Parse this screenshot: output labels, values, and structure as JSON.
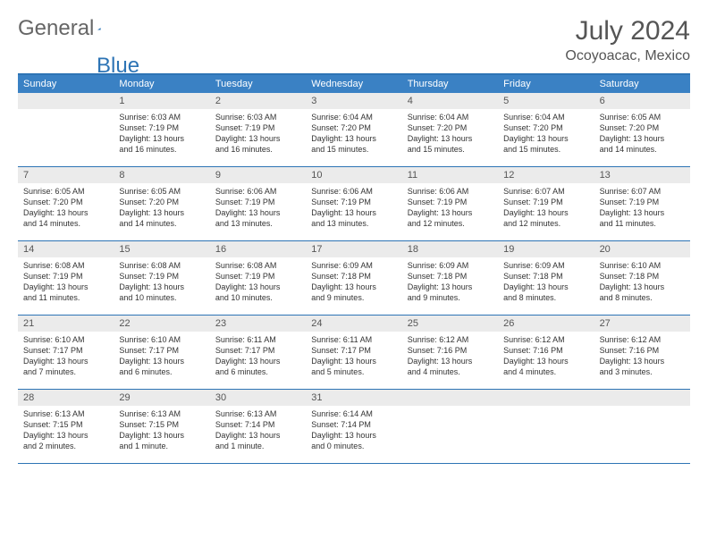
{
  "brand": {
    "part1": "General",
    "part2": "Blue"
  },
  "title": "July 2024",
  "subtitle": "Ocoyoacac, Mexico",
  "colors": {
    "accent": "#2d74b5",
    "header_bg": "#3a81c4",
    "daynum_bg": "#ebebeb",
    "text": "#333333",
    "muted": "#555555"
  },
  "weekdays": [
    "Sunday",
    "Monday",
    "Tuesday",
    "Wednesday",
    "Thursday",
    "Friday",
    "Saturday"
  ],
  "weeks": [
    [
      null,
      {
        "n": "1",
        "sr": "Sunrise: 6:03 AM",
        "ss": "Sunset: 7:19 PM",
        "dl1": "Daylight: 13 hours",
        "dl2": "and 16 minutes."
      },
      {
        "n": "2",
        "sr": "Sunrise: 6:03 AM",
        "ss": "Sunset: 7:19 PM",
        "dl1": "Daylight: 13 hours",
        "dl2": "and 16 minutes."
      },
      {
        "n": "3",
        "sr": "Sunrise: 6:04 AM",
        "ss": "Sunset: 7:20 PM",
        "dl1": "Daylight: 13 hours",
        "dl2": "and 15 minutes."
      },
      {
        "n": "4",
        "sr": "Sunrise: 6:04 AM",
        "ss": "Sunset: 7:20 PM",
        "dl1": "Daylight: 13 hours",
        "dl2": "and 15 minutes."
      },
      {
        "n": "5",
        "sr": "Sunrise: 6:04 AM",
        "ss": "Sunset: 7:20 PM",
        "dl1": "Daylight: 13 hours",
        "dl2": "and 15 minutes."
      },
      {
        "n": "6",
        "sr": "Sunrise: 6:05 AM",
        "ss": "Sunset: 7:20 PM",
        "dl1": "Daylight: 13 hours",
        "dl2": "and 14 minutes."
      }
    ],
    [
      {
        "n": "7",
        "sr": "Sunrise: 6:05 AM",
        "ss": "Sunset: 7:20 PM",
        "dl1": "Daylight: 13 hours",
        "dl2": "and 14 minutes."
      },
      {
        "n": "8",
        "sr": "Sunrise: 6:05 AM",
        "ss": "Sunset: 7:20 PM",
        "dl1": "Daylight: 13 hours",
        "dl2": "and 14 minutes."
      },
      {
        "n": "9",
        "sr": "Sunrise: 6:06 AM",
        "ss": "Sunset: 7:19 PM",
        "dl1": "Daylight: 13 hours",
        "dl2": "and 13 minutes."
      },
      {
        "n": "10",
        "sr": "Sunrise: 6:06 AM",
        "ss": "Sunset: 7:19 PM",
        "dl1": "Daylight: 13 hours",
        "dl2": "and 13 minutes."
      },
      {
        "n": "11",
        "sr": "Sunrise: 6:06 AM",
        "ss": "Sunset: 7:19 PM",
        "dl1": "Daylight: 13 hours",
        "dl2": "and 12 minutes."
      },
      {
        "n": "12",
        "sr": "Sunrise: 6:07 AM",
        "ss": "Sunset: 7:19 PM",
        "dl1": "Daylight: 13 hours",
        "dl2": "and 12 minutes."
      },
      {
        "n": "13",
        "sr": "Sunrise: 6:07 AM",
        "ss": "Sunset: 7:19 PM",
        "dl1": "Daylight: 13 hours",
        "dl2": "and 11 minutes."
      }
    ],
    [
      {
        "n": "14",
        "sr": "Sunrise: 6:08 AM",
        "ss": "Sunset: 7:19 PM",
        "dl1": "Daylight: 13 hours",
        "dl2": "and 11 minutes."
      },
      {
        "n": "15",
        "sr": "Sunrise: 6:08 AM",
        "ss": "Sunset: 7:19 PM",
        "dl1": "Daylight: 13 hours",
        "dl2": "and 10 minutes."
      },
      {
        "n": "16",
        "sr": "Sunrise: 6:08 AM",
        "ss": "Sunset: 7:19 PM",
        "dl1": "Daylight: 13 hours",
        "dl2": "and 10 minutes."
      },
      {
        "n": "17",
        "sr": "Sunrise: 6:09 AM",
        "ss": "Sunset: 7:18 PM",
        "dl1": "Daylight: 13 hours",
        "dl2": "and 9 minutes."
      },
      {
        "n": "18",
        "sr": "Sunrise: 6:09 AM",
        "ss": "Sunset: 7:18 PM",
        "dl1": "Daylight: 13 hours",
        "dl2": "and 9 minutes."
      },
      {
        "n": "19",
        "sr": "Sunrise: 6:09 AM",
        "ss": "Sunset: 7:18 PM",
        "dl1": "Daylight: 13 hours",
        "dl2": "and 8 minutes."
      },
      {
        "n": "20",
        "sr": "Sunrise: 6:10 AM",
        "ss": "Sunset: 7:18 PM",
        "dl1": "Daylight: 13 hours",
        "dl2": "and 8 minutes."
      }
    ],
    [
      {
        "n": "21",
        "sr": "Sunrise: 6:10 AM",
        "ss": "Sunset: 7:17 PM",
        "dl1": "Daylight: 13 hours",
        "dl2": "and 7 minutes."
      },
      {
        "n": "22",
        "sr": "Sunrise: 6:10 AM",
        "ss": "Sunset: 7:17 PM",
        "dl1": "Daylight: 13 hours",
        "dl2": "and 6 minutes."
      },
      {
        "n": "23",
        "sr": "Sunrise: 6:11 AM",
        "ss": "Sunset: 7:17 PM",
        "dl1": "Daylight: 13 hours",
        "dl2": "and 6 minutes."
      },
      {
        "n": "24",
        "sr": "Sunrise: 6:11 AM",
        "ss": "Sunset: 7:17 PM",
        "dl1": "Daylight: 13 hours",
        "dl2": "and 5 minutes."
      },
      {
        "n": "25",
        "sr": "Sunrise: 6:12 AM",
        "ss": "Sunset: 7:16 PM",
        "dl1": "Daylight: 13 hours",
        "dl2": "and 4 minutes."
      },
      {
        "n": "26",
        "sr": "Sunrise: 6:12 AM",
        "ss": "Sunset: 7:16 PM",
        "dl1": "Daylight: 13 hours",
        "dl2": "and 4 minutes."
      },
      {
        "n": "27",
        "sr": "Sunrise: 6:12 AM",
        "ss": "Sunset: 7:16 PM",
        "dl1": "Daylight: 13 hours",
        "dl2": "and 3 minutes."
      }
    ],
    [
      {
        "n": "28",
        "sr": "Sunrise: 6:13 AM",
        "ss": "Sunset: 7:15 PM",
        "dl1": "Daylight: 13 hours",
        "dl2": "and 2 minutes."
      },
      {
        "n": "29",
        "sr": "Sunrise: 6:13 AM",
        "ss": "Sunset: 7:15 PM",
        "dl1": "Daylight: 13 hours",
        "dl2": "and 1 minute."
      },
      {
        "n": "30",
        "sr": "Sunrise: 6:13 AM",
        "ss": "Sunset: 7:14 PM",
        "dl1": "Daylight: 13 hours",
        "dl2": "and 1 minute."
      },
      {
        "n": "31",
        "sr": "Sunrise: 6:14 AM",
        "ss": "Sunset: 7:14 PM",
        "dl1": "Daylight: 13 hours",
        "dl2": "and 0 minutes."
      },
      null,
      null,
      null
    ]
  ]
}
